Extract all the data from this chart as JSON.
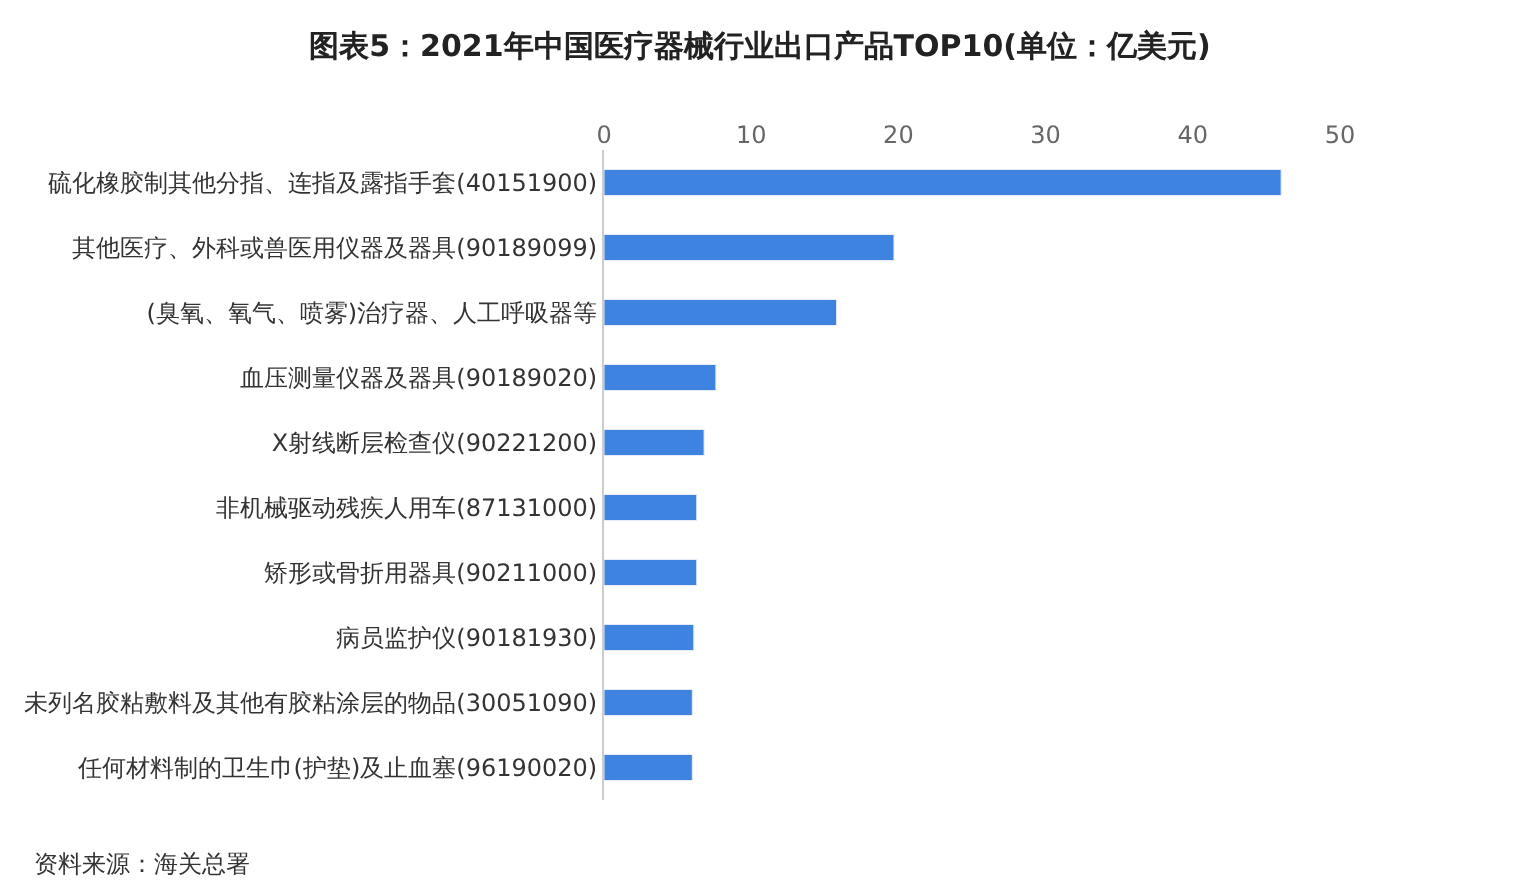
{
  "chart_data": {
    "type": "bar",
    "orientation": "horizontal",
    "title": "图表5：2021年中国医疗器械行业出口产品TOP10(单位：亿美元)",
    "categories": [
      "硫化橡胶制其他分指、连指及露指手套(40151900)",
      "其他医疗、外科或兽医用仪器及器具(90189099)",
      "(臭氧、氧气、喷雾)治疗器、人工呼吸器等",
      "血压测量仪器及器具(90189020)",
      "X射线断层检查仪(90221200)",
      "非机械驱动残疾人用车(87131000)",
      "矫形或骨折用器具(90211000)",
      "病员监护仪(90181930)",
      "未列名胶粘敷料及其他有胶粘涂层的物品(30051090)",
      "任何材料制的卫生巾(护垫)及止血塞(96190020)"
    ],
    "values": [
      46.0,
      19.7,
      15.8,
      7.6,
      6.8,
      6.3,
      6.3,
      6.1,
      6.0,
      6.0
    ],
    "color": "#3f83e0",
    "xlim": [
      0,
      50
    ],
    "xticks": [
      0,
      10,
      20,
      30,
      40,
      50
    ],
    "legend": false,
    "annotations": [
      "资料来源：海关总署"
    ]
  }
}
